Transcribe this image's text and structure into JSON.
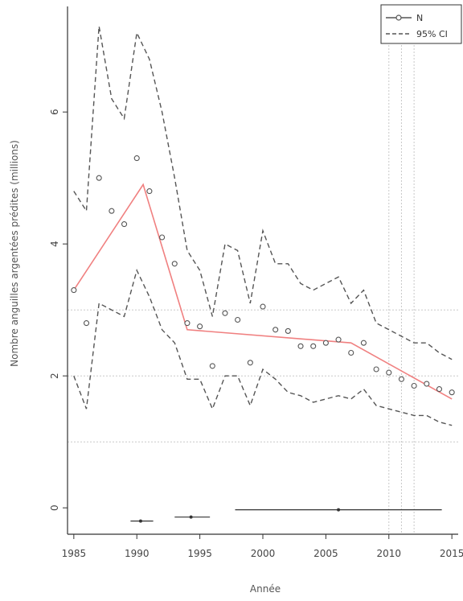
{
  "chart_data": {
    "type": "line",
    "xlabel": "Année",
    "ylabel": "Nombre anguilles argentées prédites (millions)",
    "xlim": [
      1984.5,
      2015.5
    ],
    "ylim": [
      -0.4,
      7.6
    ],
    "xticks": [
      1985,
      1990,
      1995,
      2000,
      2005,
      2010,
      2015
    ],
    "yticks": [
      0,
      2,
      4,
      6
    ],
    "grid_hlines": [
      1,
      2,
      3
    ],
    "grid_vlines": [
      2010,
      2011,
      2012
    ],
    "legend": {
      "position": "top-right",
      "entries": [
        "N",
        "95% CI"
      ]
    },
    "series": [
      {
        "name": "N",
        "style": "points",
        "x": [
          1985,
          1986,
          1987,
          1988,
          1989,
          1990,
          1991,
          1992,
          1993,
          1994,
          1995,
          1996,
          1997,
          1998,
          1999,
          2000,
          2001,
          2002,
          2003,
          2004,
          2005,
          2006,
          2007,
          2008,
          2009,
          2010,
          2011,
          2012,
          2013,
          2014,
          2015
        ],
        "y": [
          3.3,
          2.8,
          5.0,
          4.5,
          4.3,
          5.3,
          4.8,
          4.1,
          3.7,
          2.8,
          2.75,
          2.15,
          2.95,
          2.85,
          2.2,
          3.05,
          2.7,
          2.68,
          2.45,
          2.45,
          2.5,
          2.55,
          2.35,
          2.5,
          2.1,
          2.05,
          1.95,
          1.85,
          1.88,
          1.8,
          1.75
        ]
      },
      {
        "name": "95% CI",
        "style": "dashed",
        "x": [
          1985,
          1986,
          1987,
          1988,
          1989,
          1990,
          1991,
          1992,
          1993,
          1994,
          1995,
          1996,
          1997,
          1998,
          1999,
          2000,
          2001,
          2002,
          2003,
          2004,
          2005,
          2006,
          2007,
          2008,
          2009,
          2010,
          2011,
          2012,
          2013,
          2014,
          2015
        ],
        "y": [
          4.8,
          4.5,
          7.3,
          6.2,
          5.9,
          7.2,
          6.8,
          6.0,
          5.0,
          3.9,
          3.6,
          2.9,
          4.0,
          3.9,
          3.1,
          4.2,
          3.7,
          3.7,
          3.4,
          3.3,
          3.4,
          3.5,
          3.1,
          3.3,
          2.8,
          2.7,
          2.6,
          2.5,
          2.5,
          2.35,
          2.25
        ]
      },
      {
        "style": "dashed",
        "x": [
          1985,
          1986,
          1987,
          1988,
          1989,
          1990,
          1991,
          1992,
          1993,
          1994,
          1995,
          1996,
          1997,
          1998,
          1999,
          2000,
          2001,
          2002,
          2003,
          2004,
          2005,
          2006,
          2007,
          2008,
          2009,
          2010,
          2011,
          2012,
          2013,
          2014,
          2015
        ],
        "y": [
          2.0,
          1.5,
          3.1,
          3.0,
          2.9,
          3.6,
          3.2,
          2.7,
          2.5,
          1.95,
          1.95,
          1.5,
          2.0,
          2.0,
          1.55,
          2.1,
          1.95,
          1.75,
          1.7,
          1.6,
          1.65,
          1.7,
          1.65,
          1.8,
          1.55,
          1.5,
          1.45,
          1.4,
          1.4,
          1.3,
          1.25
        ]
      },
      {
        "style": "red-line",
        "x": [
          1985,
          1990.5,
          1994,
          2007,
          2015
        ],
        "y": [
          3.3,
          4.9,
          2.7,
          2.5,
          1.65
        ]
      }
    ],
    "breakpoints": [
      {
        "x": 1990.3,
        "xmin": 1989.5,
        "xmax": 1991.3,
        "y": -0.2
      },
      {
        "x": 1994.3,
        "xmin": 1993.0,
        "xmax": 1995.8,
        "y": -0.14
      },
      {
        "x": 2006.0,
        "xmin": 1997.8,
        "xmax": 2014.2,
        "y": -0.03
      }
    ],
    "colors": {
      "line": "#555555",
      "trend": "#f08080",
      "grid": "#c8c8c8",
      "axis": "#333333"
    }
  }
}
